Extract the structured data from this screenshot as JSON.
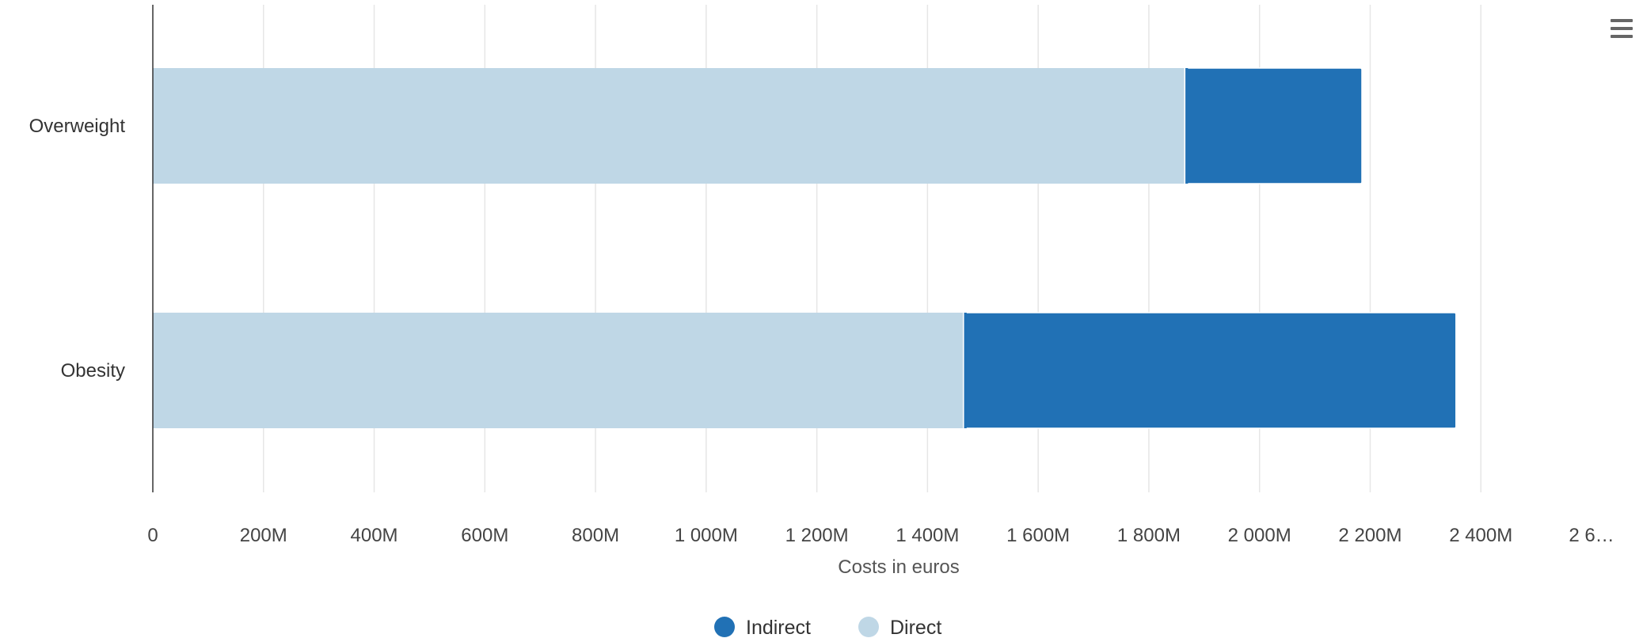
{
  "chart_data": {
    "type": "bar",
    "orientation": "horizontal",
    "stacked": true,
    "categories": [
      "Overweight",
      "Obesity"
    ],
    "series": [
      {
        "name": "Indirect",
        "color": "#2171b5",
        "values": [
          320,
          890
        ]
      },
      {
        "name": "Direct",
        "color": "#bfd7e6",
        "values": [
          1865,
          1465
        ]
      }
    ],
    "xlabel": "Costs in euros",
    "ylabel": "",
    "xlim": [
      0,
      2600
    ],
    "x_ticks": [
      0,
      200,
      400,
      600,
      800,
      1000,
      1200,
      1400,
      1600,
      1800,
      2000,
      2200,
      2400,
      2600
    ],
    "x_tick_labels": [
      "0",
      "200M",
      "400M",
      "600M",
      "800M",
      "1 000M",
      "1 200M",
      "1 400M",
      "1 600M",
      "1 800M",
      "2 000M",
      "2 200M",
      "2 400M",
      "2 6…"
    ],
    "grid": "vertical",
    "legend_position": "bottom-center",
    "legend": [
      {
        "name": "Indirect",
        "color": "#2171b5"
      },
      {
        "name": "Direct",
        "color": "#bfd7e6"
      }
    ]
  },
  "menu": {
    "icon": "hamburger-menu-icon"
  }
}
